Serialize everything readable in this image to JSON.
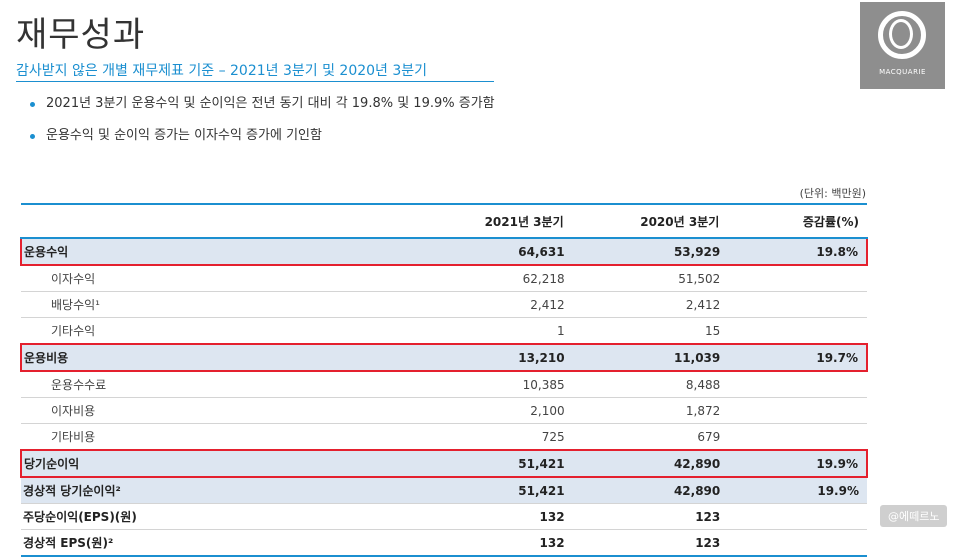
{
  "header": {
    "title": "재무성과",
    "subtitle": "감사받지 않은 개별 재무제표 기준 – 2021년 3분기 및 2020년 3분기"
  },
  "logo": {
    "text": "MACQUARIE"
  },
  "bullets": [
    "2021년 3분기 운용수익 및 순이익은 전년 동기 대비 각 19.8% 및 19.9% 증가함",
    "운용수익 및 순이익 증가는 이자수익 증가에 기인함"
  ],
  "table": {
    "unit": "(단위: 백만원)",
    "headers": [
      "",
      "2021년 3분기",
      "2020년 3분기",
      "증감률(%)"
    ],
    "rows": [
      {
        "label": "운용수익",
        "q3_2021": "64,631",
        "q3_2020": "53,929",
        "change": "19.8%",
        "type": "main"
      },
      {
        "label": "이자수익",
        "q3_2021": "62,218",
        "q3_2020": "51,502",
        "change": "",
        "type": "sub"
      },
      {
        "label": "배당수익¹",
        "q3_2021": "2,412",
        "q3_2020": "2,412",
        "change": "",
        "type": "sub"
      },
      {
        "label": "기타수익",
        "q3_2021": "1",
        "q3_2020": "15",
        "change": "",
        "type": "sub"
      },
      {
        "label": "운용비용",
        "q3_2021": "13,210",
        "q3_2020": "11,039",
        "change": "19.7%",
        "type": "main"
      },
      {
        "label": "운용수수료",
        "q3_2021": "10,385",
        "q3_2020": "8,488",
        "change": "",
        "type": "sub"
      },
      {
        "label": "이자비용",
        "q3_2021": "2,100",
        "q3_2020": "1,872",
        "change": "",
        "type": "sub"
      },
      {
        "label": "기타비용",
        "q3_2021": "725",
        "q3_2020": "679",
        "change": "",
        "type": "sub"
      },
      {
        "label": "당기순이익",
        "q3_2021": "51,421",
        "q3_2020": "42,890",
        "change": "19.9%",
        "type": "main"
      },
      {
        "label": "경상적 당기순이익²",
        "q3_2021": "51,421",
        "q3_2020": "42,890",
        "change": "19.9%",
        "type": "shaded"
      },
      {
        "label": "주당순이익(EPS)(원)",
        "q3_2021": "132",
        "q3_2020": "123",
        "change": "",
        "type": "bold"
      },
      {
        "label": "경상적 EPS(원)²",
        "q3_2021": "132",
        "q3_2020": "123",
        "change": "",
        "type": "bold"
      }
    ]
  },
  "watermark": "@에떼르노",
  "colors": {
    "accent": "#1b8fd0",
    "highlight": "#e4202e",
    "shade": "#dde6f1",
    "logo_bg": "#8e8e8e"
  }
}
